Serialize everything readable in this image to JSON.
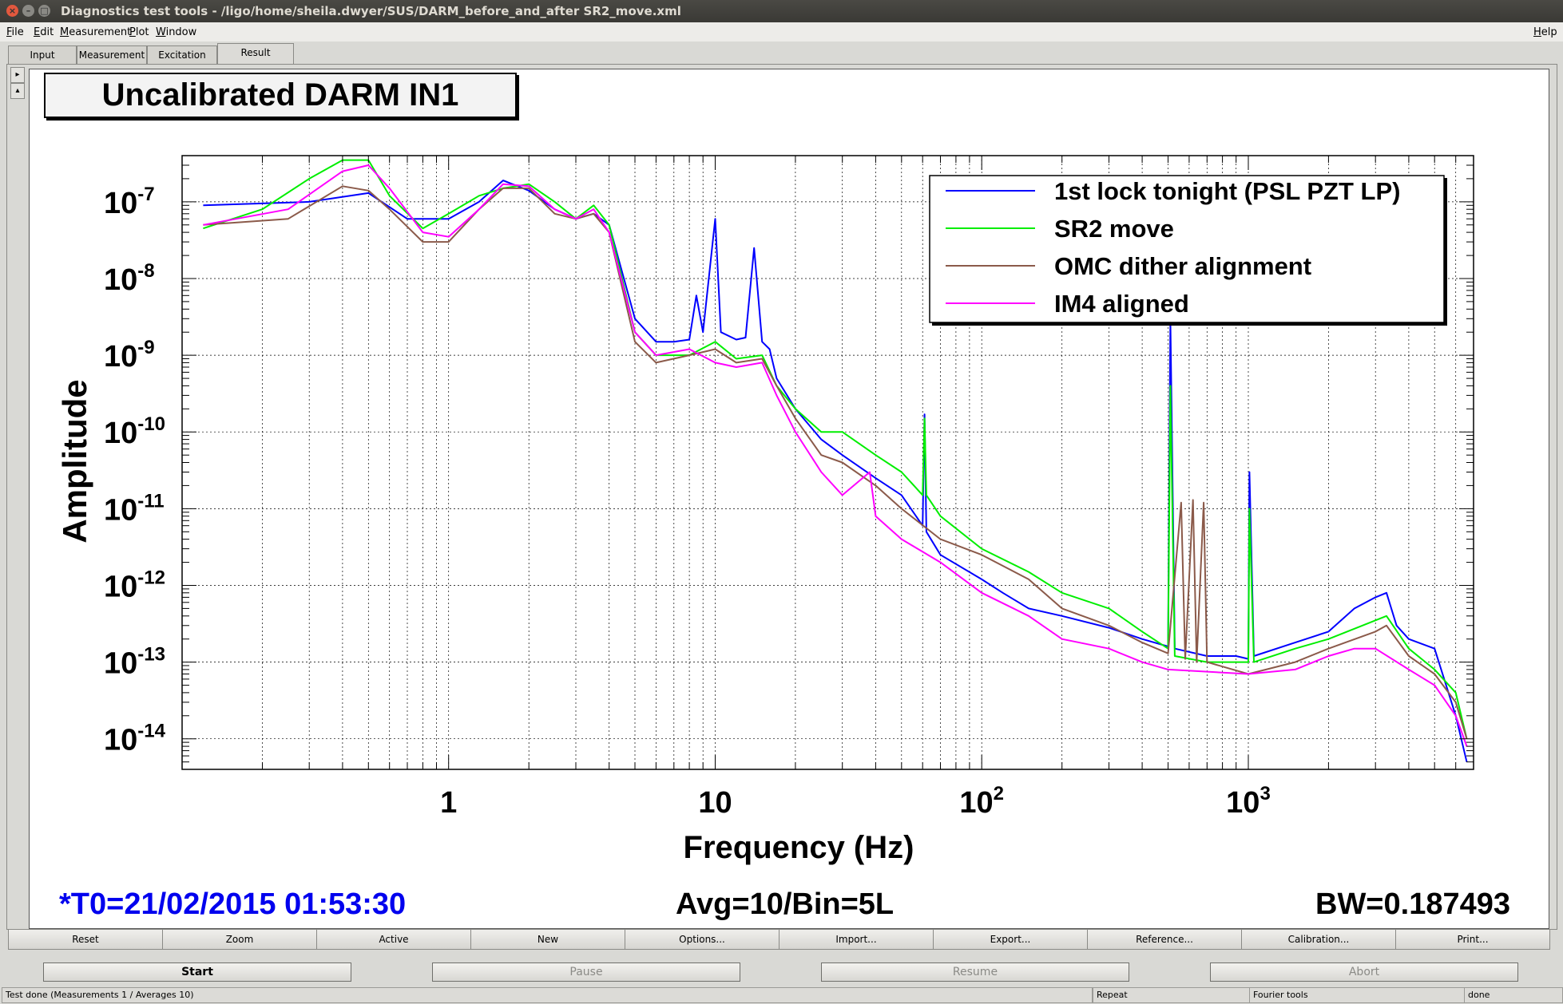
{
  "window": {
    "title": "Diagnostics test tools - /ligo/home/sheila.dwyer/SUS/DARM_before_and_after SR2_move.xml",
    "controls": [
      "close-icon",
      "minimize-icon",
      "maximize-icon"
    ]
  },
  "menu": {
    "items": [
      {
        "hot": "F",
        "rest": "ile"
      },
      {
        "hot": "E",
        "rest": "dit"
      },
      {
        "hot": "M",
        "rest": "easurement"
      },
      {
        "hot": "P",
        "rest": "lot"
      },
      {
        "hot": "W",
        "rest": "indow"
      }
    ],
    "help": {
      "hot": "H",
      "rest": "elp"
    }
  },
  "tabs": [
    "Input",
    "Measurement",
    "Excitation",
    "Result"
  ],
  "active_tab": "Result",
  "plot": {
    "title": "Uncalibrated DARM IN1",
    "t0": "*T0=21/02/2015 01:53:30",
    "avg": "Avg=10/Bin=5L",
    "bw": "BW=0.187493"
  },
  "chart_data": {
    "type": "line",
    "title": "Uncalibrated DARM IN1",
    "xlabel": "Frequency (Hz)",
    "ylabel": "Amplitude",
    "xscale": "log",
    "yscale": "log",
    "xlim": [
      0.1,
      7000
    ],
    "ylim": [
      4e-15,
      4e-07
    ],
    "xticks": [
      {
        "value": 1,
        "base": "1",
        "exp": ""
      },
      {
        "value": 10,
        "base": "10",
        "exp": ""
      },
      {
        "value": 100,
        "base": "10",
        "exp": "2"
      },
      {
        "value": 1000,
        "base": "10",
        "exp": "3"
      }
    ],
    "yticks": [
      {
        "value": 1e-07,
        "base": "10",
        "exp": "-7"
      },
      {
        "value": 1e-08,
        "base": "10",
        "exp": "-8"
      },
      {
        "value": 1e-09,
        "base": "10",
        "exp": "-9"
      },
      {
        "value": 1e-10,
        "base": "10",
        "exp": "-10"
      },
      {
        "value": 1e-11,
        "base": "10",
        "exp": "-11"
      },
      {
        "value": 1e-12,
        "base": "10",
        "exp": "-12"
      },
      {
        "value": 1e-13,
        "base": "10",
        "exp": "-13"
      },
      {
        "value": 1e-14,
        "base": "10",
        "exp": "-14"
      }
    ],
    "grid": true,
    "legend_position": "top-right",
    "series": [
      {
        "name": "1st lock tonight (PSL PZT LP)",
        "color": "#0000ff",
        "points": [
          [
            0.12,
            9e-08
          ],
          [
            0.3,
            1e-07
          ],
          [
            0.5,
            1.3e-07
          ],
          [
            0.7,
            6e-08
          ],
          [
            1,
            6e-08
          ],
          [
            1.3,
            1e-07
          ],
          [
            1.6,
            1.9e-07
          ],
          [
            2,
            1.4e-07
          ],
          [
            2.5,
            8e-08
          ],
          [
            3,
            6e-08
          ],
          [
            3.5,
            7e-08
          ],
          [
            4,
            5e-08
          ],
          [
            5,
            3e-09
          ],
          [
            6,
            1.5e-09
          ],
          [
            7,
            1.5e-09
          ],
          [
            8,
            1.6e-09
          ],
          [
            8.5,
            6e-09
          ],
          [
            9,
            2e-09
          ],
          [
            10,
            6e-08
          ],
          [
            10.5,
            2e-09
          ],
          [
            12,
            1.6e-09
          ],
          [
            13,
            1.7e-09
          ],
          [
            14,
            2.5e-08
          ],
          [
            15,
            1.5e-09
          ],
          [
            16,
            1.2e-09
          ],
          [
            17,
            5e-10
          ],
          [
            20,
            2e-10
          ],
          [
            25,
            8e-11
          ],
          [
            30,
            5e-11
          ],
          [
            40,
            2.5e-11
          ],
          [
            50,
            1.5e-11
          ],
          [
            60,
            6e-12
          ],
          [
            61,
            1.7e-10
          ],
          [
            62,
            5e-12
          ],
          [
            70,
            2.5e-12
          ],
          [
            100,
            1.2e-12
          ],
          [
            120,
            8e-13
          ],
          [
            150,
            5e-13
          ],
          [
            200,
            4e-13
          ],
          [
            300,
            2.8e-13
          ],
          [
            400,
            2e-13
          ],
          [
            500,
            1.6e-13
          ],
          [
            510,
            3e-09
          ],
          [
            530,
            1.5e-13
          ],
          [
            700,
            1.2e-13
          ],
          [
            900,
            1.2e-13
          ],
          [
            1000,
            1.1e-13
          ],
          [
            1010,
            3e-11
          ],
          [
            1050,
            1.2e-13
          ],
          [
            1500,
            1.8e-13
          ],
          [
            2000,
            2.5e-13
          ],
          [
            2500,
            5e-13
          ],
          [
            3000,
            7e-13
          ],
          [
            3300,
            8e-13
          ],
          [
            3600,
            3e-13
          ],
          [
            4000,
            2e-13
          ],
          [
            5000,
            1.5e-13
          ],
          [
            6000,
            2e-14
          ],
          [
            6600,
            5e-15
          ]
        ]
      },
      {
        "name": "SR2 move",
        "color": "#00ee00",
        "points": [
          [
            0.12,
            4.5e-08
          ],
          [
            0.2,
            8e-08
          ],
          [
            0.3,
            2e-07
          ],
          [
            0.4,
            3.5e-07
          ],
          [
            0.5,
            3.5e-07
          ],
          [
            0.6,
            1.2e-07
          ],
          [
            0.8,
            4.5e-08
          ],
          [
            1,
            7e-08
          ],
          [
            1.3,
            1.2e-07
          ],
          [
            1.6,
            1.5e-07
          ],
          [
            2,
            1.7e-07
          ],
          [
            2.5,
            1e-07
          ],
          [
            3,
            6e-08
          ],
          [
            3.5,
            9e-08
          ],
          [
            4,
            5e-08
          ],
          [
            5,
            2e-09
          ],
          [
            6,
            1e-09
          ],
          [
            8,
            1e-09
          ],
          [
            10,
            1.5e-09
          ],
          [
            12,
            9e-10
          ],
          [
            15,
            1e-09
          ],
          [
            17,
            4e-10
          ],
          [
            20,
            2e-10
          ],
          [
            25,
            1e-10
          ],
          [
            30,
            1e-10
          ],
          [
            40,
            5e-11
          ],
          [
            50,
            3e-11
          ],
          [
            60,
            1.5e-11
          ],
          [
            61,
            1.5e-10
          ],
          [
            62,
            1.5e-11
          ],
          [
            70,
            8e-12
          ],
          [
            100,
            3e-12
          ],
          [
            150,
            1.5e-12
          ],
          [
            200,
            8e-13
          ],
          [
            300,
            5e-13
          ],
          [
            400,
            2.5e-13
          ],
          [
            500,
            1.5e-13
          ],
          [
            510,
            4e-10
          ],
          [
            530,
            1.2e-13
          ],
          [
            700,
            1e-13
          ],
          [
            1000,
            1e-13
          ],
          [
            1010,
            1e-11
          ],
          [
            1050,
            1e-13
          ],
          [
            1500,
            1.5e-13
          ],
          [
            2000,
            2e-13
          ],
          [
            3000,
            3.5e-13
          ],
          [
            3300,
            4e-13
          ],
          [
            4000,
            1.5e-13
          ],
          [
            5000,
            8e-14
          ],
          [
            6000,
            4e-14
          ],
          [
            6600,
            1e-14
          ]
        ]
      },
      {
        "name": "OMC dither alignment",
        "color": "#8b5a4a",
        "points": [
          [
            0.12,
            5e-08
          ],
          [
            0.25,
            6e-08
          ],
          [
            0.4,
            1.6e-07
          ],
          [
            0.5,
            1.4e-07
          ],
          [
            0.6,
            8e-08
          ],
          [
            0.8,
            3e-08
          ],
          [
            1,
            3e-08
          ],
          [
            1.3,
            8e-08
          ],
          [
            1.6,
            1.5e-07
          ],
          [
            2,
            1.5e-07
          ],
          [
            2.5,
            7e-08
          ],
          [
            3,
            6e-08
          ],
          [
            3.5,
            7e-08
          ],
          [
            4,
            4e-08
          ],
          [
            5,
            1.5e-09
          ],
          [
            6,
            8e-10
          ],
          [
            8,
            1e-09
          ],
          [
            10,
            1.2e-09
          ],
          [
            12,
            8e-10
          ],
          [
            15,
            9e-10
          ],
          [
            17,
            4e-10
          ],
          [
            20,
            1.5e-10
          ],
          [
            25,
            5e-11
          ],
          [
            30,
            4e-11
          ],
          [
            40,
            2e-11
          ],
          [
            50,
            1e-11
          ],
          [
            70,
            4e-12
          ],
          [
            100,
            2.5e-12
          ],
          [
            150,
            1.2e-12
          ],
          [
            200,
            5e-13
          ],
          [
            300,
            3e-13
          ],
          [
            400,
            1.8e-13
          ],
          [
            500,
            1.3e-13
          ],
          [
            560,
            1.2e-11
          ],
          [
            580,
            1.1e-13
          ],
          [
            620,
            1.3e-11
          ],
          [
            640,
            1e-13
          ],
          [
            680,
            1.2e-11
          ],
          [
            700,
            1e-13
          ],
          [
            1000,
            7e-14
          ],
          [
            1500,
            1e-13
          ],
          [
            2000,
            1.5e-13
          ],
          [
            3000,
            2.5e-13
          ],
          [
            3300,
            3e-13
          ],
          [
            4000,
            1.2e-13
          ],
          [
            5000,
            7e-14
          ],
          [
            6000,
            3e-14
          ],
          [
            6600,
            1e-14
          ]
        ]
      },
      {
        "name": "IM4 aligned",
        "color": "#ff00ff",
        "points": [
          [
            0.12,
            5e-08
          ],
          [
            0.25,
            8e-08
          ],
          [
            0.4,
            2.5e-07
          ],
          [
            0.5,
            3e-07
          ],
          [
            0.6,
            1.5e-07
          ],
          [
            0.8,
            4e-08
          ],
          [
            1,
            3.5e-08
          ],
          [
            1.3,
            8e-08
          ],
          [
            1.6,
            1.7e-07
          ],
          [
            2,
            1.6e-07
          ],
          [
            2.5,
            8e-08
          ],
          [
            3,
            6e-08
          ],
          [
            3.5,
            8e-08
          ],
          [
            4,
            4e-08
          ],
          [
            5,
            2e-09
          ],
          [
            6,
            1e-09
          ],
          [
            8,
            1.2e-09
          ],
          [
            10,
            8e-10
          ],
          [
            12,
            7e-10
          ],
          [
            15,
            8e-10
          ],
          [
            17,
            3e-10
          ],
          [
            20,
            1e-10
          ],
          [
            25,
            3e-11
          ],
          [
            30,
            1.5e-11
          ],
          [
            38,
            3e-11
          ],
          [
            40,
            8e-12
          ],
          [
            50,
            4e-12
          ],
          [
            70,
            2e-12
          ],
          [
            100,
            8e-13
          ],
          [
            150,
            4e-13
          ],
          [
            200,
            2e-13
          ],
          [
            300,
            1.5e-13
          ],
          [
            400,
            1e-13
          ],
          [
            500,
            8e-14
          ],
          [
            1000,
            7e-14
          ],
          [
            1500,
            8e-14
          ],
          [
            2000,
            1.2e-13
          ],
          [
            2500,
            1.5e-13
          ],
          [
            3000,
            1.5e-13
          ],
          [
            4000,
            8e-14
          ],
          [
            5000,
            5e-14
          ],
          [
            6000,
            2e-14
          ],
          [
            6600,
            8e-15
          ]
        ]
      }
    ]
  },
  "buttons": [
    "Reset",
    "Zoom",
    "Active",
    "New",
    "Options...",
    "Import...",
    "Export...",
    "Reference...",
    "Calibration...",
    "Print..."
  ],
  "controls": [
    "Start",
    "Pause",
    "Resume",
    "Abort"
  ],
  "status": {
    "message": "Test done (Measurements 1 / Averages 10)",
    "repeat": "Repeat",
    "tool": "Fourier tools",
    "state": "done"
  }
}
